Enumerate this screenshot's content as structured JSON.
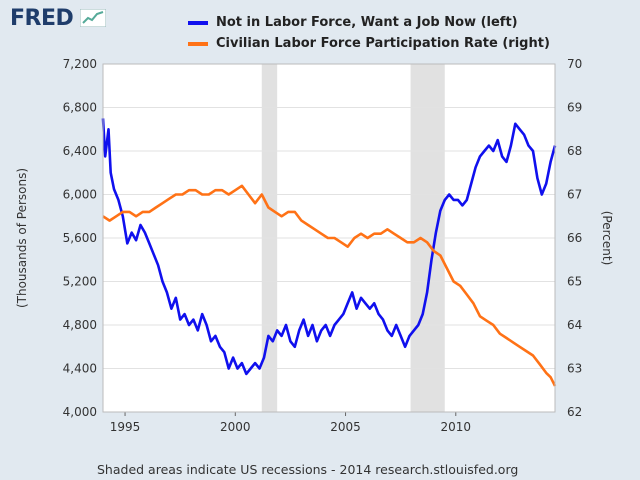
{
  "logo": {
    "text": "FRED",
    "icon": "trend-line-icon"
  },
  "footer": {
    "note": "Shaded areas indicate US recessions - 2014 research.stlouisfed.org"
  },
  "colors": {
    "left_series": "#1010ee",
    "right_series": "#ff7216",
    "recession": "#e1e1e1",
    "plot_bg": "#ffffff",
    "page_bg": "#e1e9f0",
    "grid": "#e2e2e2"
  },
  "chart_data": {
    "type": "line",
    "ylabel_left": "(Thousands of Persons)",
    "ylabel_right": "(Percent)",
    "ylim_left": [
      4000,
      7200
    ],
    "ylim_right": [
      62,
      70
    ],
    "xlim": [
      1994.0,
      2014.5
    ],
    "left_ticks": [
      "4,000",
      "4,400",
      "4,800",
      "5,200",
      "5,600",
      "6,000",
      "6,400",
      "6,800",
      "7,200"
    ],
    "right_ticks": [
      "62",
      "63",
      "64",
      "65",
      "66",
      "67",
      "68",
      "69",
      "70"
    ],
    "x_ticks": [
      "1995",
      "2000",
      "2005",
      "2010"
    ],
    "grid": "horizontal",
    "legend_position": "top",
    "recessions": [
      [
        2001.2,
        2001.9
      ],
      [
        2007.95,
        2009.5
      ]
    ],
    "series": [
      {
        "name": "Not in Labor Force, Want a Job Now (left)",
        "axis": "left",
        "points": [
          [
            1994.0,
            6700
          ],
          [
            1994.1,
            6350
          ],
          [
            1994.25,
            6600
          ],
          [
            1994.35,
            6200
          ],
          [
            1994.5,
            6050
          ],
          [
            1994.7,
            5950
          ],
          [
            1994.9,
            5800
          ],
          [
            1995.1,
            5550
          ],
          [
            1995.3,
            5650
          ],
          [
            1995.5,
            5580
          ],
          [
            1995.7,
            5720
          ],
          [
            1995.9,
            5650
          ],
          [
            1996.1,
            5550
          ],
          [
            1996.3,
            5450
          ],
          [
            1996.5,
            5350
          ],
          [
            1996.7,
            5200
          ],
          [
            1996.9,
            5100
          ],
          [
            1997.1,
            4950
          ],
          [
            1997.3,
            5050
          ],
          [
            1997.5,
            4850
          ],
          [
            1997.7,
            4900
          ],
          [
            1997.9,
            4800
          ],
          [
            1998.1,
            4850
          ],
          [
            1998.3,
            4750
          ],
          [
            1998.5,
            4900
          ],
          [
            1998.7,
            4800
          ],
          [
            1998.9,
            4650
          ],
          [
            1999.1,
            4700
          ],
          [
            1999.3,
            4600
          ],
          [
            1999.5,
            4550
          ],
          [
            1999.7,
            4400
          ],
          [
            1999.9,
            4500
          ],
          [
            2000.1,
            4400
          ],
          [
            2000.3,
            4450
          ],
          [
            2000.5,
            4350
          ],
          [
            2000.7,
            4400
          ],
          [
            2000.9,
            4450
          ],
          [
            2001.1,
            4400
          ],
          [
            2001.3,
            4500
          ],
          [
            2001.5,
            4700
          ],
          [
            2001.7,
            4650
          ],
          [
            2001.9,
            4750
          ],
          [
            2002.1,
            4700
          ],
          [
            2002.3,
            4800
          ],
          [
            2002.5,
            4650
          ],
          [
            2002.7,
            4600
          ],
          [
            2002.9,
            4750
          ],
          [
            2003.1,
            4850
          ],
          [
            2003.3,
            4700
          ],
          [
            2003.5,
            4800
          ],
          [
            2003.7,
            4650
          ],
          [
            2003.9,
            4750
          ],
          [
            2004.1,
            4800
          ],
          [
            2004.3,
            4700
          ],
          [
            2004.5,
            4800
          ],
          [
            2004.7,
            4850
          ],
          [
            2004.9,
            4900
          ],
          [
            2005.1,
            5000
          ],
          [
            2005.3,
            5100
          ],
          [
            2005.5,
            4950
          ],
          [
            2005.7,
            5050
          ],
          [
            2005.9,
            5000
          ],
          [
            2006.1,
            4950
          ],
          [
            2006.3,
            5000
          ],
          [
            2006.5,
            4900
          ],
          [
            2006.7,
            4850
          ],
          [
            2006.9,
            4750
          ],
          [
            2007.1,
            4700
          ],
          [
            2007.3,
            4800
          ],
          [
            2007.5,
            4700
          ],
          [
            2007.7,
            4600
          ],
          [
            2007.9,
            4700
          ],
          [
            2008.1,
            4750
          ],
          [
            2008.3,
            4800
          ],
          [
            2008.5,
            4900
          ],
          [
            2008.7,
            5100
          ],
          [
            2008.9,
            5400
          ],
          [
            2009.1,
            5650
          ],
          [
            2009.3,
            5850
          ],
          [
            2009.5,
            5950
          ],
          [
            2009.7,
            6000
          ],
          [
            2009.9,
            5950
          ],
          [
            2010.1,
            5950
          ],
          [
            2010.3,
            5900
          ],
          [
            2010.5,
            5950
          ],
          [
            2010.7,
            6100
          ],
          [
            2010.9,
            6250
          ],
          [
            2011.1,
            6350
          ],
          [
            2011.3,
            6400
          ],
          [
            2011.5,
            6450
          ],
          [
            2011.7,
            6400
          ],
          [
            2011.9,
            6500
          ],
          [
            2012.1,
            6350
          ],
          [
            2012.3,
            6300
          ],
          [
            2012.5,
            6450
          ],
          [
            2012.7,
            6650
          ],
          [
            2012.9,
            6600
          ],
          [
            2013.1,
            6550
          ],
          [
            2013.3,
            6450
          ],
          [
            2013.5,
            6400
          ],
          [
            2013.7,
            6150
          ],
          [
            2013.9,
            6000
          ],
          [
            2014.1,
            6100
          ],
          [
            2014.3,
            6300
          ],
          [
            2014.5,
            6450
          ]
        ]
      },
      {
        "name": "Civilian Labor Force Participation Rate (right)",
        "axis": "right",
        "points": [
          [
            1994.0,
            66.5
          ],
          [
            1994.3,
            66.4
          ],
          [
            1994.6,
            66.5
          ],
          [
            1994.9,
            66.6
          ],
          [
            1995.2,
            66.6
          ],
          [
            1995.5,
            66.5
          ],
          [
            1995.8,
            66.6
          ],
          [
            1996.1,
            66.6
          ],
          [
            1996.4,
            66.7
          ],
          [
            1996.7,
            66.8
          ],
          [
            1997.0,
            66.9
          ],
          [
            1997.3,
            67.0
          ],
          [
            1997.6,
            67.0
          ],
          [
            1997.9,
            67.1
          ],
          [
            1998.2,
            67.1
          ],
          [
            1998.5,
            67.0
          ],
          [
            1998.8,
            67.0
          ],
          [
            1999.1,
            67.1
          ],
          [
            1999.4,
            67.1
          ],
          [
            1999.7,
            67.0
          ],
          [
            2000.0,
            67.1
          ],
          [
            2000.3,
            67.2
          ],
          [
            2000.6,
            67.0
          ],
          [
            2000.9,
            66.8
          ],
          [
            2001.2,
            67.0
          ],
          [
            2001.5,
            66.7
          ],
          [
            2001.8,
            66.6
          ],
          [
            2002.1,
            66.5
          ],
          [
            2002.4,
            66.6
          ],
          [
            2002.7,
            66.6
          ],
          [
            2003.0,
            66.4
          ],
          [
            2003.3,
            66.3
          ],
          [
            2003.6,
            66.2
          ],
          [
            2003.9,
            66.1
          ],
          [
            2004.2,
            66.0
          ],
          [
            2004.5,
            66.0
          ],
          [
            2004.8,
            65.9
          ],
          [
            2005.1,
            65.8
          ],
          [
            2005.4,
            66.0
          ],
          [
            2005.7,
            66.1
          ],
          [
            2006.0,
            66.0
          ],
          [
            2006.3,
            66.1
          ],
          [
            2006.6,
            66.1
          ],
          [
            2006.9,
            66.2
          ],
          [
            2007.2,
            66.1
          ],
          [
            2007.5,
            66.0
          ],
          [
            2007.8,
            65.9
          ],
          [
            2008.1,
            65.9
          ],
          [
            2008.4,
            66.0
          ],
          [
            2008.7,
            65.9
          ],
          [
            2009.0,
            65.7
          ],
          [
            2009.3,
            65.6
          ],
          [
            2009.6,
            65.3
          ],
          [
            2009.9,
            65.0
          ],
          [
            2010.2,
            64.9
          ],
          [
            2010.5,
            64.7
          ],
          [
            2010.8,
            64.5
          ],
          [
            2011.1,
            64.2
          ],
          [
            2011.4,
            64.1
          ],
          [
            2011.7,
            64.0
          ],
          [
            2012.0,
            63.8
          ],
          [
            2012.3,
            63.7
          ],
          [
            2012.6,
            63.6
          ],
          [
            2012.9,
            63.5
          ],
          [
            2013.2,
            63.4
          ],
          [
            2013.5,
            63.3
          ],
          [
            2013.8,
            63.1
          ],
          [
            2014.1,
            62.9
          ],
          [
            2014.3,
            62.8
          ],
          [
            2014.5,
            62.6
          ]
        ]
      }
    ]
  }
}
